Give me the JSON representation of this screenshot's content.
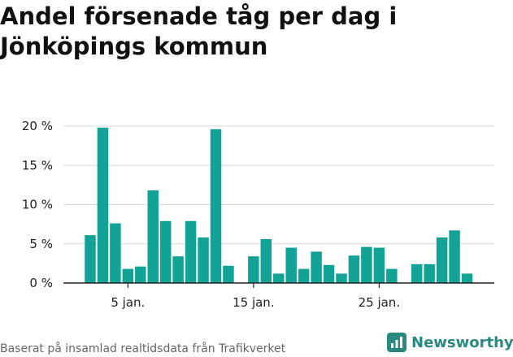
{
  "chart_data": {
    "type": "bar",
    "title": "Andel försenade tåg per dag i Jönköpings kommun",
    "xlabel": "",
    "ylabel": "",
    "ylim": [
      0,
      20
    ],
    "yticks": [
      0,
      5,
      10,
      15,
      20
    ],
    "ytick_labels": [
      "0 %",
      "5 %",
      "10 %",
      "15 %",
      "20 %"
    ],
    "x_unit": "dag i januari",
    "x": [
      2,
      3,
      4,
      5,
      6,
      7,
      8,
      9,
      10,
      11,
      12,
      13,
      14,
      15,
      16,
      17,
      18,
      19,
      20,
      21,
      22,
      23,
      24,
      25,
      26,
      27,
      28,
      29,
      30,
      31
    ],
    "values": [
      6.1,
      19.8,
      7.6,
      1.8,
      2.1,
      11.8,
      7.9,
      3.4,
      7.9,
      5.8,
      19.6,
      2.2,
      null,
      3.4,
      5.6,
      1.2,
      4.5,
      1.8,
      4.0,
      2.3,
      1.2,
      3.5,
      4.6,
      4.5,
      1.8,
      null,
      2.4,
      2.4,
      5.8,
      6.7
    ],
    "values_tail": [
      1.2
    ],
    "xticks": [
      5,
      15,
      25
    ],
    "xtick_labels": [
      "5 jan.",
      "15 jan.",
      "25 jan."
    ],
    "bar_color": "#13a396",
    "grid": true,
    "legend": "none"
  },
  "footer": {
    "source": "Baserat på insamlad realtidsdata från Trafikverket",
    "brand": "Newsworthy",
    "brand_icon": "newsworthy-logo-icon",
    "brand_color": "#2a8a80"
  }
}
